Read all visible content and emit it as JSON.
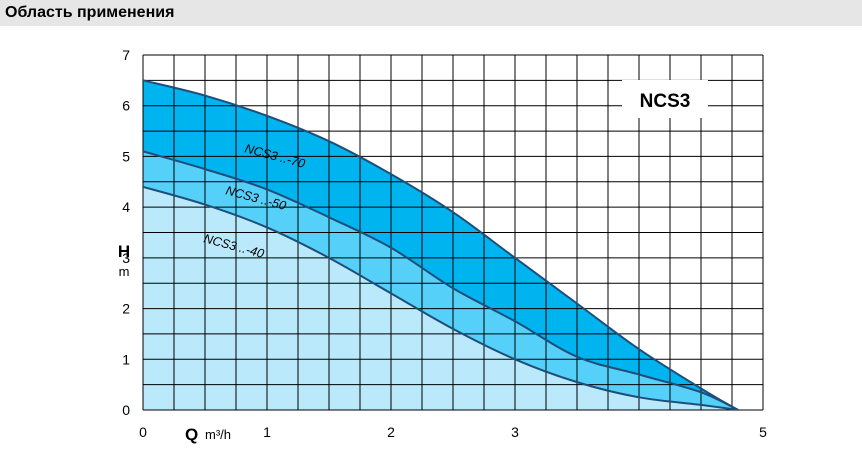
{
  "header": {
    "title": "Область применения"
  },
  "chart_data": {
    "type": "area",
    "title": "NCS3",
    "xlabel": "Q",
    "xunit": "m³/h",
    "ylabel": "H",
    "yunit": "m",
    "xlim": [
      0,
      5
    ],
    "ylim": [
      0,
      7
    ],
    "xticks": [
      "0",
      "1",
      "2",
      "3",
      "4",
      "5"
    ],
    "xticks_visible": [
      "0",
      "1",
      "2",
      "3",
      "5"
    ],
    "yticks": [
      "0",
      "1",
      "2",
      "3",
      "4",
      "5",
      "6",
      "7"
    ],
    "grid": true,
    "legend": "inline labels on curves",
    "colors": {
      "light": "#b9e9fb",
      "mid": "#55d0f8",
      "dark": "#00b4ef",
      "line": "#1f4e7a"
    },
    "series": [
      {
        "name": "NCS3 ..-70",
        "x": [
          0,
          0.5,
          1,
          1.5,
          2,
          2.5,
          3,
          3.5,
          4,
          4.55,
          4.8
        ],
        "y": [
          6.5,
          6.2,
          5.8,
          5.3,
          4.65,
          3.9,
          3.0,
          2.1,
          1.2,
          0.35,
          0.0
        ]
      },
      {
        "name": "NCS3 ..-50",
        "x": [
          0,
          0.5,
          1,
          1.5,
          2,
          2.5,
          3,
          3.5,
          4,
          4.5,
          4.8
        ],
        "y": [
          5.1,
          4.75,
          4.35,
          3.8,
          3.2,
          2.4,
          1.75,
          1.05,
          0.7,
          0.35,
          0.0
        ]
      },
      {
        "name": "NCS3 ..-40",
        "x": [
          0,
          0.5,
          1,
          1.5,
          2,
          2.5,
          3,
          3.5,
          4,
          4.5,
          4.8
        ],
        "y": [
          4.4,
          4.05,
          3.6,
          3.0,
          2.3,
          1.6,
          1.0,
          0.55,
          0.25,
          0.1,
          0.0
        ]
      }
    ]
  }
}
